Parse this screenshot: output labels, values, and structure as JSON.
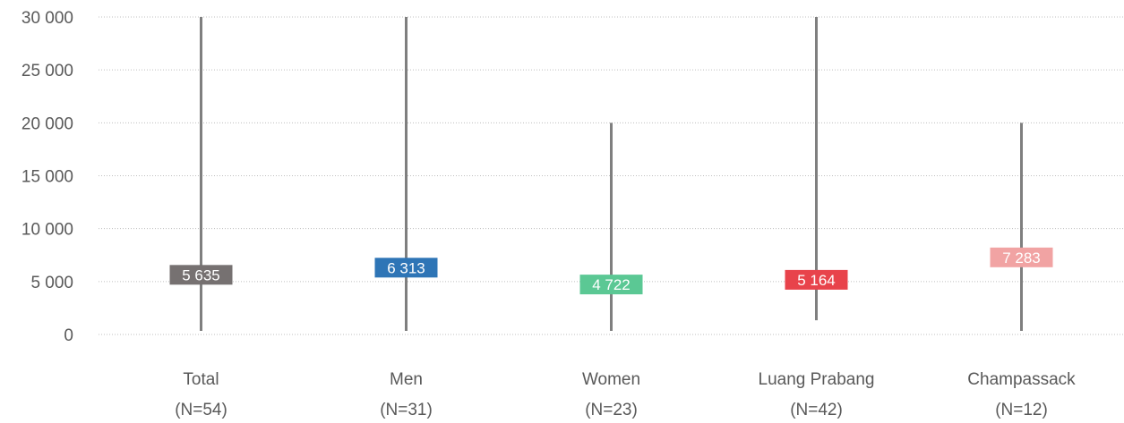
{
  "chart_data": {
    "type": "range",
    "title": "",
    "xlabel": "",
    "ylabel": "",
    "ylim": [
      0,
      30000
    ],
    "yticks": [
      {
        "value": 0,
        "label": "0"
      },
      {
        "value": 5000,
        "label": "5 000"
      },
      {
        "value": 10000,
        "label": "10 000"
      },
      {
        "value": 15000,
        "label": "15 000"
      },
      {
        "value": 20000,
        "label": "20 000"
      },
      {
        "value": 25000,
        "label": "25 000"
      },
      {
        "value": 30000,
        "label": "30 000"
      }
    ],
    "grid": "horizontal dotted",
    "categories": [
      {
        "name": "Total",
        "n": "(N=54)",
        "min": 0,
        "max": 30000,
        "value": 5635,
        "label": "5 635",
        "color": "#767171"
      },
      {
        "name": "Men",
        "n": "(N=31)",
        "min": 0,
        "max": 30000,
        "value": 6313,
        "label": "6 313",
        "color": "#2E75B6"
      },
      {
        "name": "Women",
        "n": "(N=23)",
        "min": 0,
        "max": 20000,
        "value": 4722,
        "label": "4 722",
        "color": "#5BC894"
      },
      {
        "name": "Luang Prabang",
        "n": "(N=42)",
        "min": 1000,
        "max": 30000,
        "value": 5164,
        "label": "5 164",
        "color": "#E8434B"
      },
      {
        "name": "Champassack",
        "n": "(N=12)",
        "min": 0,
        "max": 20000,
        "value": 7283,
        "label": "7 283",
        "color": "#F1A3A3"
      }
    ]
  }
}
